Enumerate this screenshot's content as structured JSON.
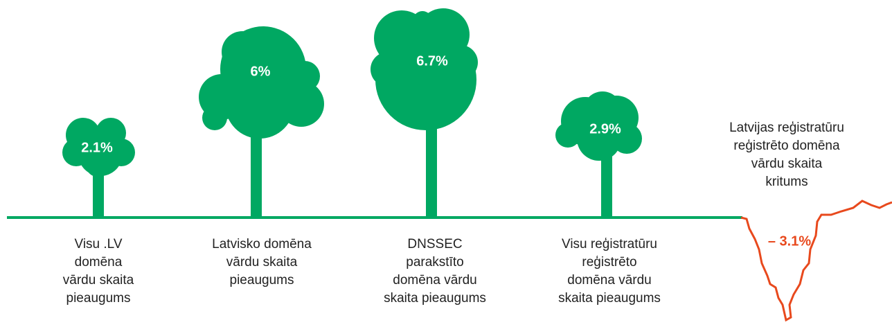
{
  "items": [
    {
      "value": "2.1%",
      "label": [
        "Visu .LV",
        "domēna",
        "vārdu skaita",
        "pieaugums"
      ]
    },
    {
      "value": "6%",
      "label": [
        "Latvisko domēna",
        "vārdu skaita",
        "pieaugums"
      ]
    },
    {
      "value": "6.7%",
      "label": [
        "DNSSEC",
        "parakstīto",
        "domēna vārdu",
        "skaita pieaugums"
      ]
    },
    {
      "value": "2.9%",
      "label": [
        "Visu reģistratūru",
        "reģistrēto",
        "domēna vārdu",
        "skaita pieaugums"
      ]
    }
  ],
  "decline": {
    "value": "– 3.1%",
    "label": [
      "Latvijas reģistratūru",
      "reģistrēto domēna",
      "vārdu skaita",
      "kritums"
    ]
  }
}
